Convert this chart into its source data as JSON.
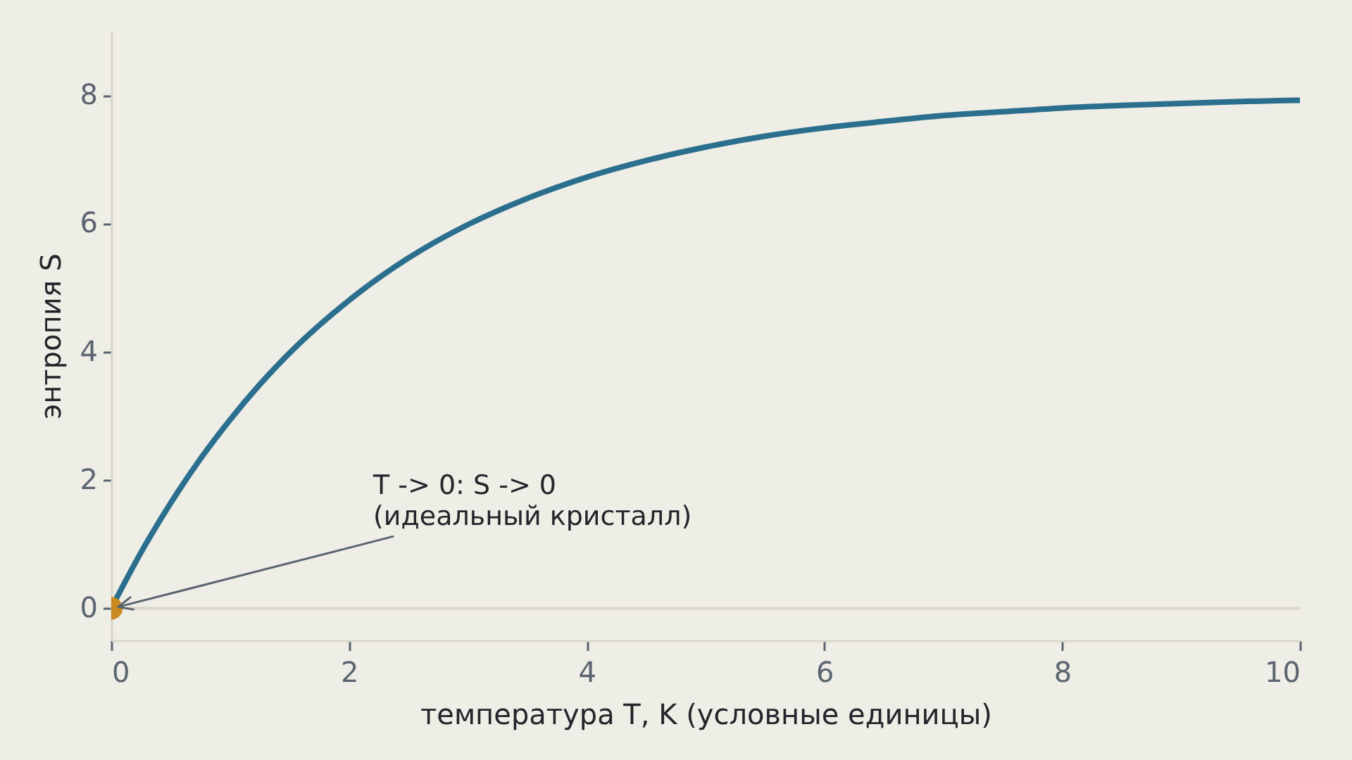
{
  "chart_data": {
    "type": "line",
    "xlabel": "температура T, K (условные единицы)",
    "ylabel": "энтропия S",
    "x": [
      0,
      0.25,
      0.5,
      0.75,
      1,
      1.25,
      1.5,
      2,
      2.5,
      3,
      3.5,
      4,
      4.5,
      5,
      5.5,
      6,
      6.5,
      7,
      7.5,
      8,
      8.5,
      9,
      9.5,
      10
    ],
    "series": [
      {
        "color": "#2b6f8e",
        "values": [
          0,
          0.87,
          1.64,
          2.33,
          2.94,
          3.49,
          3.98,
          4.8,
          5.46,
          5.98,
          6.39,
          6.72,
          6.98,
          7.19,
          7.36,
          7.49,
          7.59,
          7.68,
          7.74,
          7.8,
          7.84,
          7.87,
          7.9,
          7.92
        ]
      },
      {
        "type": "scatter",
        "color": "#c98a22",
        "x": [
          0
        ],
        "values": [
          0
        ]
      }
    ],
    "xlim": [
      0,
      10
    ],
    "ylim": [
      -0.5,
      9
    ],
    "xticks": [
      0,
      2,
      4,
      6,
      8,
      10
    ],
    "yticks": [
      0,
      2,
      4,
      6,
      8
    ],
    "ref_lines": [
      {
        "axis": "y",
        "value": 0,
        "color": "#dad5c8"
      }
    ],
    "annotations": [
      {
        "text": "T -> 0: S -> 0\n(идеальный кристалл)",
        "x": 0,
        "y": 0
      }
    ],
    "line_style": "solid"
  }
}
